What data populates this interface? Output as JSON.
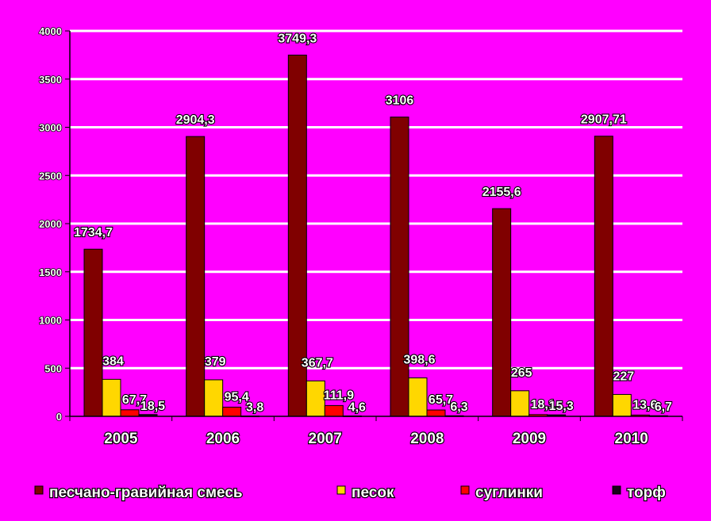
{
  "chart_data": {
    "type": "bar",
    "categories": [
      "2005",
      "2006",
      "2007",
      "2008",
      "2009",
      "2010"
    ],
    "series": [
      {
        "name": "песчано-гравийная смесь",
        "color": "#800000",
        "values": [
          1734.7,
          2904.3,
          3749.3,
          3106,
          2155.6,
          2907.71
        ],
        "labels": [
          "1734,7",
          "2904,3",
          "3749,3",
          "3106",
          "2155,6",
          "2907,71"
        ]
      },
      {
        "name": "песок",
        "color": "#ffd700",
        "values": [
          384,
          379,
          367.7,
          398.6,
          265,
          227
        ],
        "labels": [
          "384",
          "379",
          "367,7",
          "398,6",
          "265",
          "227"
        ]
      },
      {
        "name": "суглинки",
        "color": "#ff0000",
        "values": [
          67.7,
          95.4,
          111.9,
          65.7,
          18.1,
          13.6
        ],
        "labels": [
          "67,7",
          "95,4",
          "111,9",
          "65,7",
          "18,1",
          "13,6"
        ]
      },
      {
        "name": "торф",
        "color": "#1a001a",
        "values": [
          18.5,
          3.8,
          4.6,
          6.3,
          15.3,
          6.7
        ],
        "labels": [
          "18,5",
          "3,8",
          "4,6",
          "6,3",
          "15,3",
          "6,7"
        ]
      }
    ],
    "yticks": [
      "0",
      "500",
      "1000",
      "1500",
      "2000",
      "2500",
      "3000",
      "3500",
      "4000"
    ],
    "ylim": [
      0,
      4000
    ],
    "grid": true,
    "legend_position": "bottom"
  }
}
